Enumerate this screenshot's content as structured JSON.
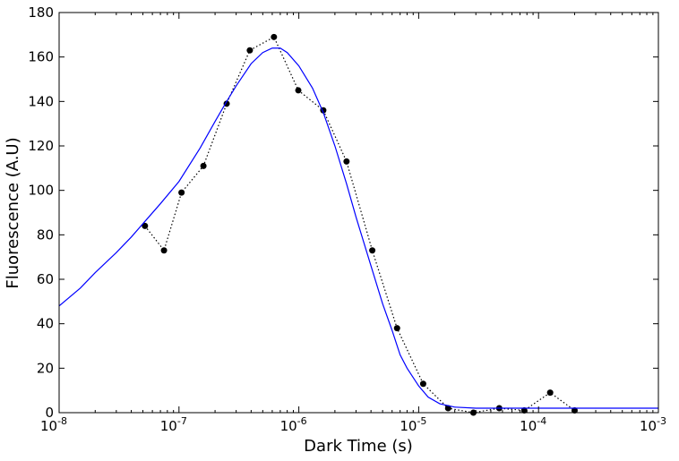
{
  "chart_data": {
    "type": "scatter",
    "xlabel": "Dark Time (s)",
    "ylabel": "Fluorescence (A.U)",
    "xscale": "log",
    "xlim": [
      1e-08,
      0.001
    ],
    "ylim": [
      0,
      180
    ],
    "grid": false,
    "x_ticks": [
      {
        "value": 1e-08,
        "base": "10",
        "exp": "-8"
      },
      {
        "value": 1e-07,
        "base": "10",
        "exp": "-7"
      },
      {
        "value": 1e-06,
        "base": "10",
        "exp": "-6"
      },
      {
        "value": 1e-05,
        "base": "10",
        "exp": "-5"
      },
      {
        "value": 0.0001,
        "base": "10",
        "exp": "-4"
      },
      {
        "value": 0.001,
        "base": "10",
        "exp": "-3"
      }
    ],
    "y_ticks": [
      {
        "value": 0,
        "label": "0"
      },
      {
        "value": 20,
        "label": "20"
      },
      {
        "value": 40,
        "label": "40"
      },
      {
        "value": 60,
        "label": "60"
      },
      {
        "value": 80,
        "label": "80"
      },
      {
        "value": 100,
        "label": "100"
      },
      {
        "value": 120,
        "label": "120"
      },
      {
        "value": 140,
        "label": "140"
      },
      {
        "value": 160,
        "label": "160"
      },
      {
        "value": 180,
        "label": "180"
      }
    ],
    "series": [
      {
        "style": "markers-dotted",
        "color": "#000000",
        "x": [
          5.2e-08,
          7.5e-08,
          1.05e-07,
          1.6e-07,
          2.5e-07,
          3.9e-07,
          6.2e-07,
          9.9e-07,
          1.6e-06,
          2.5e-06,
          4.1e-06,
          6.6e-06,
          1.09e-05,
          1.76e-05,
          2.86e-05,
          4.7e-05,
          7.6e-05,
          0.000125,
          0.0002
        ],
        "y": [
          84,
          73,
          99,
          111,
          139,
          163,
          169,
          145,
          136,
          113,
          73,
          38,
          13,
          2,
          0,
          2,
          1,
          9,
          1
        ]
      },
      {
        "style": "line",
        "color": "#0000ff",
        "x": [
          1e-08,
          1.5e-08,
          2e-08,
          3e-08,
          4e-08,
          5e-08,
          7e-08,
          1e-07,
          1.5e-07,
          2e-07,
          2.5e-07,
          3e-07,
          4e-07,
          5e-07,
          6e-07,
          7e-07,
          8e-07,
          1e-06,
          1.3e-06,
          1.6e-06,
          2e-06,
          2.5e-06,
          3e-06,
          4e-06,
          5e-06,
          6e-06,
          7e-06,
          8e-06,
          1e-05,
          1.2e-05,
          1.5e-05,
          2e-05,
          3e-05,
          5e-05,
          0.0001,
          0.0002,
          0.0005,
          0.001
        ],
        "y": [
          48,
          56,
          63,
          72,
          79,
          85,
          94,
          104,
          119,
          131,
          140,
          147,
          157,
          162,
          164,
          164,
          162,
          156,
          146,
          135,
          120,
          103,
          88,
          66,
          49,
          37,
          26,
          20,
          12,
          7,
          4,
          2.5,
          2,
          2,
          2,
          2,
          2,
          2
        ]
      }
    ]
  }
}
